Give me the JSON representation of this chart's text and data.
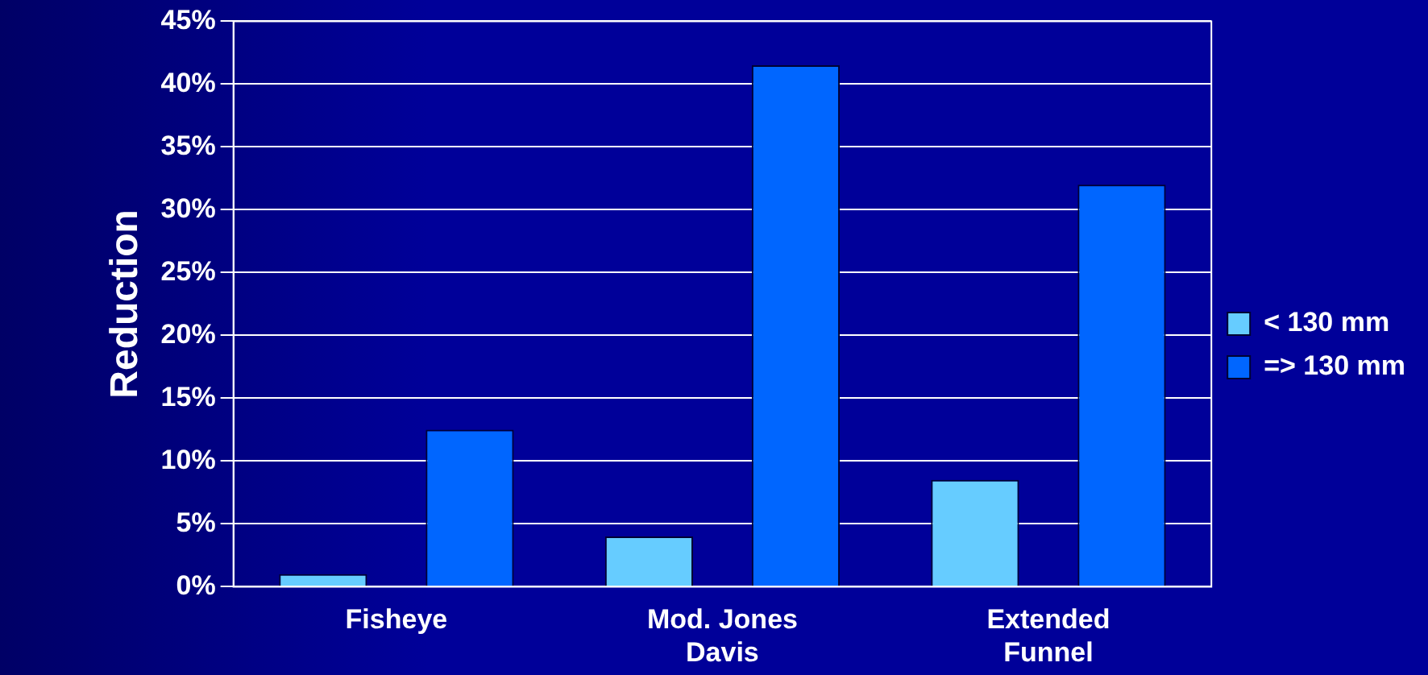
{
  "chart_data": {
    "type": "bar",
    "ylabel": "Reduction",
    "categories": [
      "Fisheye",
      "Mod. Jones Davis",
      "Extended Funnel"
    ],
    "series": [
      {
        "name": "< 130 mm",
        "color": "#66ccff",
        "values": [
          1,
          4,
          8.5
        ]
      },
      {
        "name": "=> 130 mm",
        "color": "#0066ff",
        "values": [
          12.5,
          41.5,
          32
        ]
      }
    ],
    "ylim": [
      0,
      45
    ],
    "yticks": [
      {
        "value": 0,
        "label": "0%"
      },
      {
        "value": 5,
        "label": "5%"
      },
      {
        "value": 10,
        "label": "10%"
      },
      {
        "value": 15,
        "label": "15%"
      },
      {
        "value": 20,
        "label": "20%"
      },
      {
        "value": 25,
        "label": "25%"
      },
      {
        "value": 30,
        "label": "30%"
      },
      {
        "value": 35,
        "label": "35%"
      },
      {
        "value": 40,
        "label": "40%"
      },
      {
        "value": 45,
        "label": "45%"
      }
    ],
    "grid": "y",
    "legend": "right"
  }
}
